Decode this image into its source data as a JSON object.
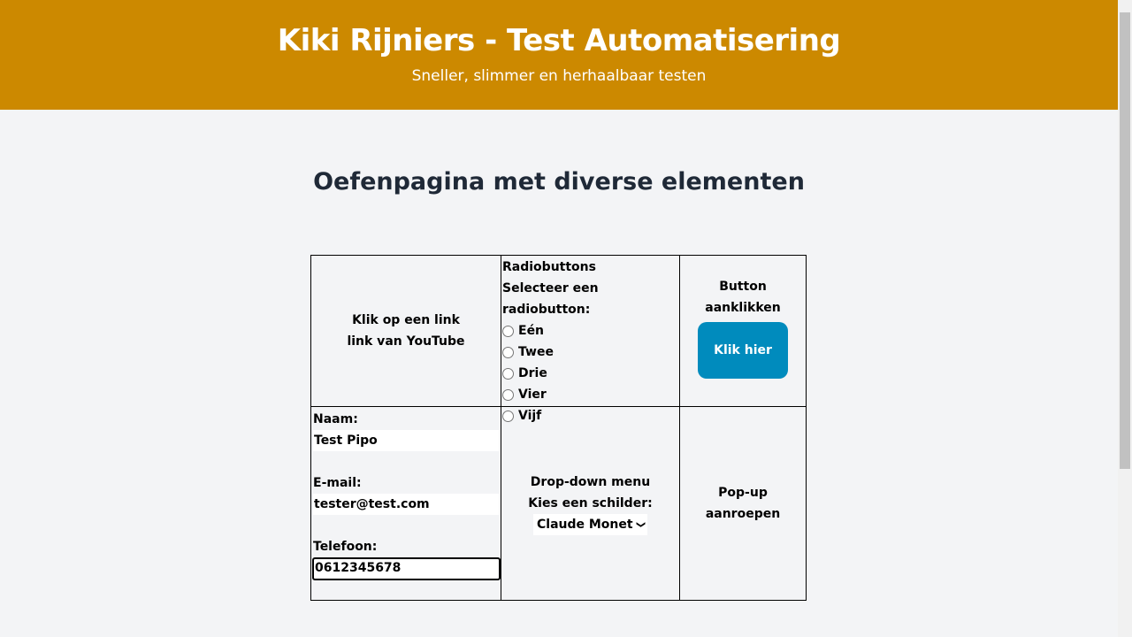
{
  "header": {
    "title": "Kiki Rijniers - Test Automatisering",
    "subtitle": "Sneller, slimmer en herhaalbaar testen"
  },
  "page_title": "Oefenpagina met diverse elementen",
  "link_cell": {
    "label": "Klik op een link",
    "link": "link van YouTube"
  },
  "radio_cell": {
    "title": "Radiobuttons",
    "label": "Selecteer een radiobutton:",
    "options": [
      "Eén",
      "Twee",
      "Drie",
      "Vier",
      "Vijf"
    ]
  },
  "button_cell": {
    "label": "Button aanklikken",
    "button": "Klik hier"
  },
  "form_cell": {
    "name_label": "Naam:",
    "name_value": "Test Pipo",
    "email_label": "E-mail:",
    "email_value": "tester@test.com",
    "phone_label": "Telefoon:",
    "phone_value": "0612345678"
  },
  "dropdown_cell": {
    "title": "Drop-down menu",
    "label": "Kies een schilder:",
    "selected": "Claude Monet"
  },
  "popup_cell": {
    "label": "Pop-up aanroepen"
  },
  "colors": {
    "header": "#cc8900",
    "button": "#008bbd",
    "background": "#f3f4f6"
  }
}
